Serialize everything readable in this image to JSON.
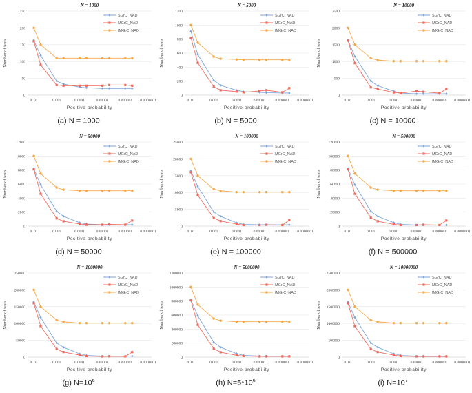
{
  "colors": {
    "SGrC_NAD": "#7fa6d6",
    "MGrC_NAD": "#ee6a5e",
    "IMGrC_NAD": "#f4a84a"
  },
  "chart_data": [
    {
      "type": "line",
      "caption": "(a)  N = 1000",
      "caption_sup": "",
      "title": "N = 1000",
      "xlabel": "Positive probability",
      "ylabel": "Number of tests",
      "x_tick_labels": [
        "0. 01",
        "0.001",
        "0.0001",
        "0.00001",
        "0.000001",
        "0.0000001"
      ],
      "x": [
        0.01,
        0.005,
        0.001,
        0.0005,
        0.0001,
        5e-05,
        1e-05,
        5e-06,
        1e-06,
        5e-07
      ],
      "ylim": [
        0,
        250
      ],
      "yticks": [
        "0",
        "50",
        "100",
        "150",
        "200",
        "250"
      ],
      "series": [
        {
          "name": "SGrC_NAD",
          "values": [
            163,
            118,
            42,
            33,
            24,
            22,
            20,
            20,
            20,
            20
          ]
        },
        {
          "name": "MGrC_NAD",
          "values": [
            160,
            90,
            30,
            28,
            28,
            28,
            28,
            30,
            30,
            28
          ]
        },
        {
          "name": "IMGrC_NAD",
          "values": [
            200,
            150,
            110,
            110,
            110,
            110,
            110,
            110,
            110,
            110
          ]
        }
      ]
    },
    {
      "type": "line",
      "caption": "(b)  N = 5000",
      "caption_sup": "",
      "title": "N = 5000",
      "xlabel": "Positive probability",
      "ylabel": "Number of tests",
      "x_tick_labels": [
        "0. 01",
        "0.001",
        "0.0001",
        "0.00001",
        "0.000001",
        "0.0000001"
      ],
      "x": [
        0.01,
        0.005,
        0.001,
        0.0005,
        0.0001,
        5e-05,
        1e-05,
        5e-06,
        1e-06,
        5e-07
      ],
      "ylim": [
        0,
        1200
      ],
      "yticks": [
        "0",
        "200",
        "400",
        "600",
        "800",
        "1000",
        "1200"
      ],
      "series": [
        {
          "name": "SGrC_NAD",
          "values": [
            910,
            580,
            210,
            140,
            70,
            50,
            40,
            35,
            30,
            30
          ]
        },
        {
          "name": "MGrC_NAD",
          "values": [
            820,
            460,
            120,
            70,
            50,
            40,
            60,
            70,
            40,
            100
          ]
        },
        {
          "name": "IMGrC_NAD",
          "values": [
            1000,
            750,
            550,
            520,
            510,
            505,
            505,
            505,
            505,
            505
          ]
        }
      ]
    },
    {
      "type": "line",
      "caption": "(c)  N = 10000",
      "caption_sup": "",
      "title": "N = 10000",
      "xlabel": "Positive probability",
      "ylabel": "Number of tests",
      "x_tick_labels": [
        "0. 01",
        "0.001",
        "0.0001",
        "0.00001",
        "0.000001",
        "0.0000001"
      ],
      "x": [
        0.01,
        0.005,
        0.001,
        0.0005,
        0.0001,
        5e-05,
        1e-05,
        5e-06,
        1e-06,
        5e-07
      ],
      "ylim": [
        0,
        2500
      ],
      "yticks": [
        "0",
        "500",
        "1000",
        "1500",
        "2000",
        "2500"
      ],
      "series": [
        {
          "name": "SGrC_NAD",
          "values": [
            1640,
            1150,
            420,
            280,
            120,
            60,
            40,
            40,
            40,
            40
          ]
        },
        {
          "name": "MGrC_NAD",
          "values": [
            1620,
            950,
            230,
            180,
            80,
            60,
            120,
            100,
            60,
            180
          ]
        },
        {
          "name": "IMGrC_NAD",
          "values": [
            2000,
            1500,
            1100,
            1040,
            1010,
            1010,
            1010,
            1010,
            1010,
            1010
          ]
        }
      ]
    },
    {
      "type": "line",
      "caption": "(d)  N = 50000",
      "caption_sup": "",
      "title": "N = 50000",
      "xlabel": "Positive probability",
      "ylabel": "Number of tests",
      "x_tick_labels": [
        "0. 01",
        "0.001",
        "0.0001",
        "0.00001",
        "0.000001",
        "0.0000001"
      ],
      "x": [
        0.01,
        0.005,
        0.001,
        0.0005,
        0.0001,
        5e-05,
        1e-05,
        5e-06,
        1e-06,
        5e-07
      ],
      "ylim": [
        0,
        12000
      ],
      "yticks": [
        "0",
        "2000",
        "4000",
        "6000",
        "8000",
        "10000",
        "12000"
      ],
      "series": [
        {
          "name": "SGrC_NAD",
          "values": [
            8200,
            5900,
            2100,
            1400,
            500,
            300,
            200,
            200,
            200,
            200
          ]
        },
        {
          "name": "MGrC_NAD",
          "values": [
            8100,
            4600,
            1100,
            700,
            300,
            200,
            200,
            250,
            200,
            800
          ]
        },
        {
          "name": "IMGrC_NAD",
          "values": [
            10000,
            7500,
            5500,
            5200,
            5050,
            5050,
            5050,
            5050,
            5050,
            5050
          ]
        }
      ]
    },
    {
      "type": "line",
      "caption": "(e)  N = 100000",
      "caption_sup": "",
      "title": "N = 100000",
      "xlabel": "Positive probability",
      "ylabel": "Number of tests",
      "x_tick_labels": [
        "0. 01",
        "0.001",
        "0.0001",
        "0.00001",
        "0.000001",
        "0.0000001"
      ],
      "x": [
        0.01,
        0.005,
        0.001,
        0.0005,
        0.0001,
        5e-05,
        1e-05,
        5e-06,
        1e-06,
        5e-07
      ],
      "ylim": [
        0,
        25000
      ],
      "yticks": [
        "0",
        "5000",
        "10000",
        "15000",
        "20000",
        "25000"
      ],
      "series": [
        {
          "name": "SGrC_NAD",
          "values": [
            16400,
            11800,
            4200,
            2900,
            1000,
            500,
            400,
            400,
            400,
            400
          ]
        },
        {
          "name": "MGrC_NAD",
          "values": [
            16000,
            9200,
            2400,
            1500,
            600,
            300,
            300,
            400,
            300,
            1800
          ]
        },
        {
          "name": "IMGrC_NAD",
          "values": [
            20000,
            15000,
            11000,
            10500,
            10100,
            10100,
            10100,
            10100,
            10100,
            10100
          ]
        }
      ]
    },
    {
      "type": "line",
      "caption": "(f)  N = 500000",
      "caption_sup": "",
      "title": "N = 500000",
      "xlabel": "Positive probability",
      "ylabel": "Number of tests",
      "x_tick_labels": [
        "0. 01",
        "0.001",
        "0.0001",
        "0.00001",
        "0.000001",
        "0.0000001"
      ],
      "x": [
        0.01,
        0.005,
        0.001,
        0.0005,
        0.0001,
        5e-05,
        1e-05,
        5e-06,
        1e-06,
        5e-07
      ],
      "ylim": [
        0,
        120000
      ],
      "yticks": [
        "0",
        "20000",
        "40000",
        "60000",
        "80000",
        "100000",
        "120000"
      ],
      "series": [
        {
          "name": "SGrC_NAD",
          "values": [
            82000,
            59000,
            21000,
            14000,
            5000,
            2500,
            1500,
            1500,
            1500,
            1500
          ]
        },
        {
          "name": "MGrC_NAD",
          "values": [
            81000,
            46000,
            12000,
            7000,
            2500,
            1500,
            1500,
            2000,
            1500,
            8000
          ]
        },
        {
          "name": "IMGrC_NAD",
          "values": [
            100000,
            75000,
            55000,
            52000,
            50500,
            50500,
            50500,
            50500,
            50500,
            50500
          ]
        }
      ]
    },
    {
      "type": "line",
      "caption": "(g)  N=10",
      "caption_sup": "6",
      "title": "N = 1000000",
      "xlabel": "Positive probability",
      "ylabel": "Number of tests",
      "x_tick_labels": [
        "0. 01",
        "0.001",
        "0.0001",
        "0.00001",
        "0.000001",
        "0.0000001"
      ],
      "x": [
        0.01,
        0.005,
        0.001,
        0.0005,
        0.0001,
        5e-05,
        1e-05,
        5e-06,
        1e-06,
        5e-07
      ],
      "ylim": [
        0,
        250000
      ],
      "yticks": [
        "0",
        "50000",
        "100000",
        "150000",
        "200000",
        "250000"
      ],
      "series": [
        {
          "name": "SGrC_NAD",
          "values": [
            164000,
            118000,
            42000,
            29000,
            10000,
            5000,
            3000,
            3000,
            3000,
            3000
          ]
        },
        {
          "name": "MGrC_NAD",
          "values": [
            160000,
            92000,
            24000,
            15000,
            6000,
            3000,
            2000,
            2500,
            2000,
            15000
          ]
        },
        {
          "name": "IMGrC_NAD",
          "values": [
            200000,
            150000,
            110000,
            105000,
            101000,
            101000,
            101000,
            101000,
            101000,
            101000
          ]
        }
      ]
    },
    {
      "type": "line",
      "caption": "(h)  N=5*10",
      "caption_sup": "6",
      "title": "N = 5000000",
      "xlabel": "Positive probability",
      "ylabel": "Number of tests",
      "x_tick_labels": [
        "0. 01",
        "0.001",
        "0.0001",
        "0.00001",
        "0.000001",
        "0.0000001"
      ],
      "x": [
        0.01,
        0.005,
        0.001,
        0.0005,
        0.0001,
        5e-05,
        1e-05,
        5e-06,
        1e-06,
        5e-07
      ],
      "ylim": [
        0,
        1200000
      ],
      "yticks": [
        "0",
        "200000",
        "400000",
        "600000",
        "800000",
        "1000000",
        "1200000"
      ],
      "series": [
        {
          "name": "SGrC_NAD",
          "values": [
            820000,
            590000,
            210000,
            140000,
            50000,
            25000,
            15000,
            15000,
            15000,
            15000
          ]
        },
        {
          "name": "MGrC_NAD",
          "values": [
            810000,
            460000,
            120000,
            70000,
            25000,
            15000,
            10000,
            10000,
            10000,
            10000
          ]
        },
        {
          "name": "IMGrC_NAD",
          "values": [
            1000000,
            750000,
            550000,
            520000,
            505000,
            505000,
            505000,
            505000,
            505000,
            505000
          ]
        }
      ]
    },
    {
      "type": "line",
      "caption": "(i)  N=10",
      "caption_sup": "7",
      "title": "N = 10000000",
      "xlabel": "Positive probability",
      "ylabel": "Number of tests",
      "x_tick_labels": [
        "0. 01",
        "0.001",
        "0.0001",
        "0.00001",
        "0.000001",
        "0.0000001"
      ],
      "x": [
        0.01,
        0.005,
        0.001,
        0.0005,
        0.0001,
        5e-05,
        1e-05,
        5e-06,
        1e-06,
        5e-07
      ],
      "ylim": [
        0,
        2500000
      ],
      "yticks": [
        "0",
        "500000",
        "1000000",
        "1500000",
        "2000000",
        "2500000"
      ],
      "series": [
        {
          "name": "SGrC_NAD",
          "values": [
            1640000,
            1180000,
            420000,
            290000,
            100000,
            50000,
            30000,
            30000,
            30000,
            30000
          ]
        },
        {
          "name": "MGrC_NAD",
          "values": [
            1600000,
            920000,
            240000,
            150000,
            60000,
            30000,
            20000,
            20000,
            20000,
            20000
          ]
        },
        {
          "name": "IMGrC_NAD",
          "values": [
            2000000,
            1500000,
            1100000,
            1050000,
            1010000,
            1010000,
            1010000,
            1010000,
            1010000,
            1010000
          ]
        }
      ]
    }
  ]
}
